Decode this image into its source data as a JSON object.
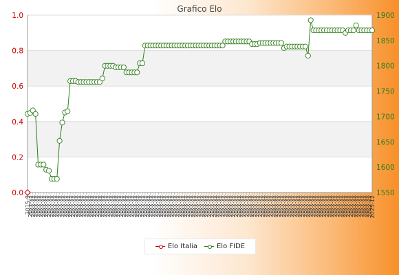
{
  "chart_data": {
    "type": "line",
    "title": "Grafico Elo",
    "x_label_pattern": "20xx-xx",
    "x_label_first": "2015-9",
    "x_label_last": "2025-12",
    "left_axis": {
      "ylim": [
        0.0,
        1.0
      ],
      "ticks": [
        "0.0",
        "0.2",
        "0.4",
        "0.6",
        "0.8",
        "1.0"
      ],
      "color": "#cc0000"
    },
    "right_axis": {
      "ylim": [
        1550,
        1900
      ],
      "ticks": [
        "1550",
        "1600",
        "1650",
        "1700",
        "1750",
        "1800",
        "1850",
        "1900"
      ],
      "color": "#2e7d1a"
    },
    "series": [
      {
        "name": "Elo Italia",
        "axis": "left",
        "color": "#cc0000",
        "values": [
          0.0
        ]
      },
      {
        "name": "Elo FIDE",
        "axis": "right",
        "color": "#2e7d1a",
        "values": [
          1705,
          1707,
          1712,
          1705,
          1605,
          1605,
          1605,
          1595,
          1593,
          1577,
          1577,
          1577,
          1652,
          1688,
          1708,
          1710,
          1770,
          1770,
          1770,
          1768,
          1768,
          1768,
          1768,
          1768,
          1768,
          1768,
          1768,
          1768,
          1775,
          1800,
          1800,
          1800,
          1800,
          1797,
          1797,
          1797,
          1797,
          1787,
          1787,
          1787,
          1787,
          1787,
          1805,
          1805,
          1840,
          1840,
          1840,
          1840,
          1840,
          1840,
          1840,
          1840,
          1840,
          1840,
          1840,
          1840,
          1840,
          1840,
          1840,
          1840,
          1840,
          1840,
          1840,
          1840,
          1840,
          1840,
          1840,
          1840,
          1840,
          1840,
          1840,
          1840,
          1840,
          1840,
          1848,
          1848,
          1848,
          1848,
          1848,
          1848,
          1848,
          1848,
          1848,
          1848,
          1843,
          1843,
          1843,
          1845,
          1845,
          1845,
          1845,
          1845,
          1845,
          1845,
          1845,
          1845,
          1835,
          1838,
          1838,
          1838,
          1838,
          1838,
          1838,
          1838,
          1838,
          1820,
          1890,
          1870,
          1870,
          1870,
          1870,
          1870,
          1870,
          1870,
          1870,
          1870,
          1870,
          1870,
          1870,
          1865,
          1870,
          1870,
          1870,
          1880,
          1870,
          1870,
          1870,
          1870,
          1870,
          1870
        ]
      }
    ],
    "grid": true,
    "legend_position": "bottom-center"
  }
}
